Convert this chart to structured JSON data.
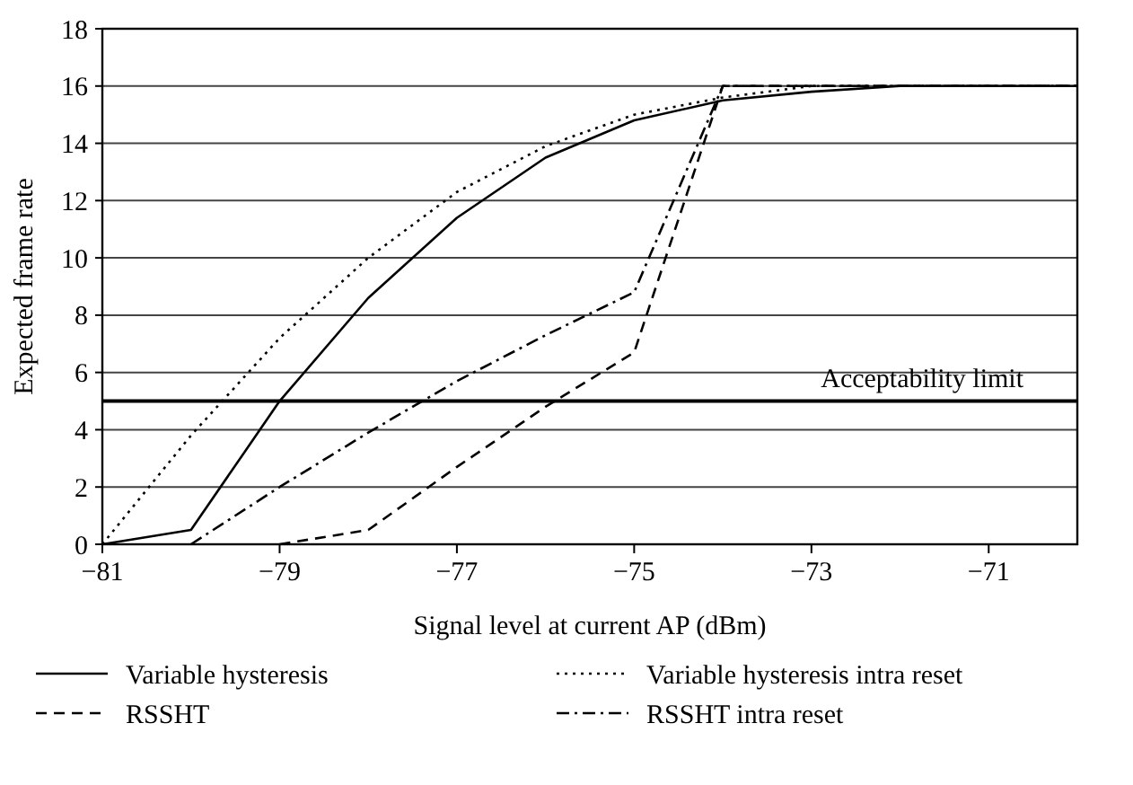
{
  "chart_data": {
    "type": "line",
    "xlabel": "Signal level at current AP (dBm)",
    "ylabel": "Expected frame rate",
    "x": [
      -81,
      -80,
      -79,
      -78,
      -77,
      -76,
      -75,
      -74,
      -73,
      -72,
      -71,
      -70
    ],
    "xlim": [
      -81,
      -70
    ],
    "xticks": [
      -81,
      -79,
      -77,
      -75,
      -73,
      -71
    ],
    "ylim": [
      0,
      18
    ],
    "yticks": [
      0,
      2,
      4,
      6,
      8,
      10,
      12,
      14,
      16,
      18
    ],
    "grid": "y",
    "legend": "bottom",
    "marker": "none",
    "series": [
      {
        "name": "Variable hysteresis",
        "color": "#000000",
        "line_style": "solid",
        "values": [
          0,
          0.5,
          5,
          8.6,
          11.4,
          13.5,
          14.8,
          15.5,
          15.8,
          16,
          16,
          16
        ]
      },
      {
        "name": "Variable hysteresis intra reset",
        "color": "#000000",
        "line_style": "dotted",
        "values": [
          0,
          3.8,
          7.2,
          10,
          12.3,
          13.9,
          15,
          15.6,
          16,
          16,
          16,
          16
        ]
      },
      {
        "name": "RSSHT",
        "color": "#000000",
        "line_style": "dashed",
        "values": [
          null,
          null,
          0,
          0.5,
          2.7,
          4.8,
          6.7,
          16,
          16,
          16,
          16,
          16
        ]
      },
      {
        "name": "RSSHT intra reset",
        "color": "#000000",
        "line_style": "dashdot",
        "values": [
          null,
          0,
          2,
          3.9,
          5.7,
          7.3,
          8.8,
          16,
          16,
          16,
          16,
          16
        ]
      }
    ],
    "ref_lines": [
      {
        "axis": "y",
        "value": 5,
        "label": "Acceptability limit"
      }
    ]
  }
}
